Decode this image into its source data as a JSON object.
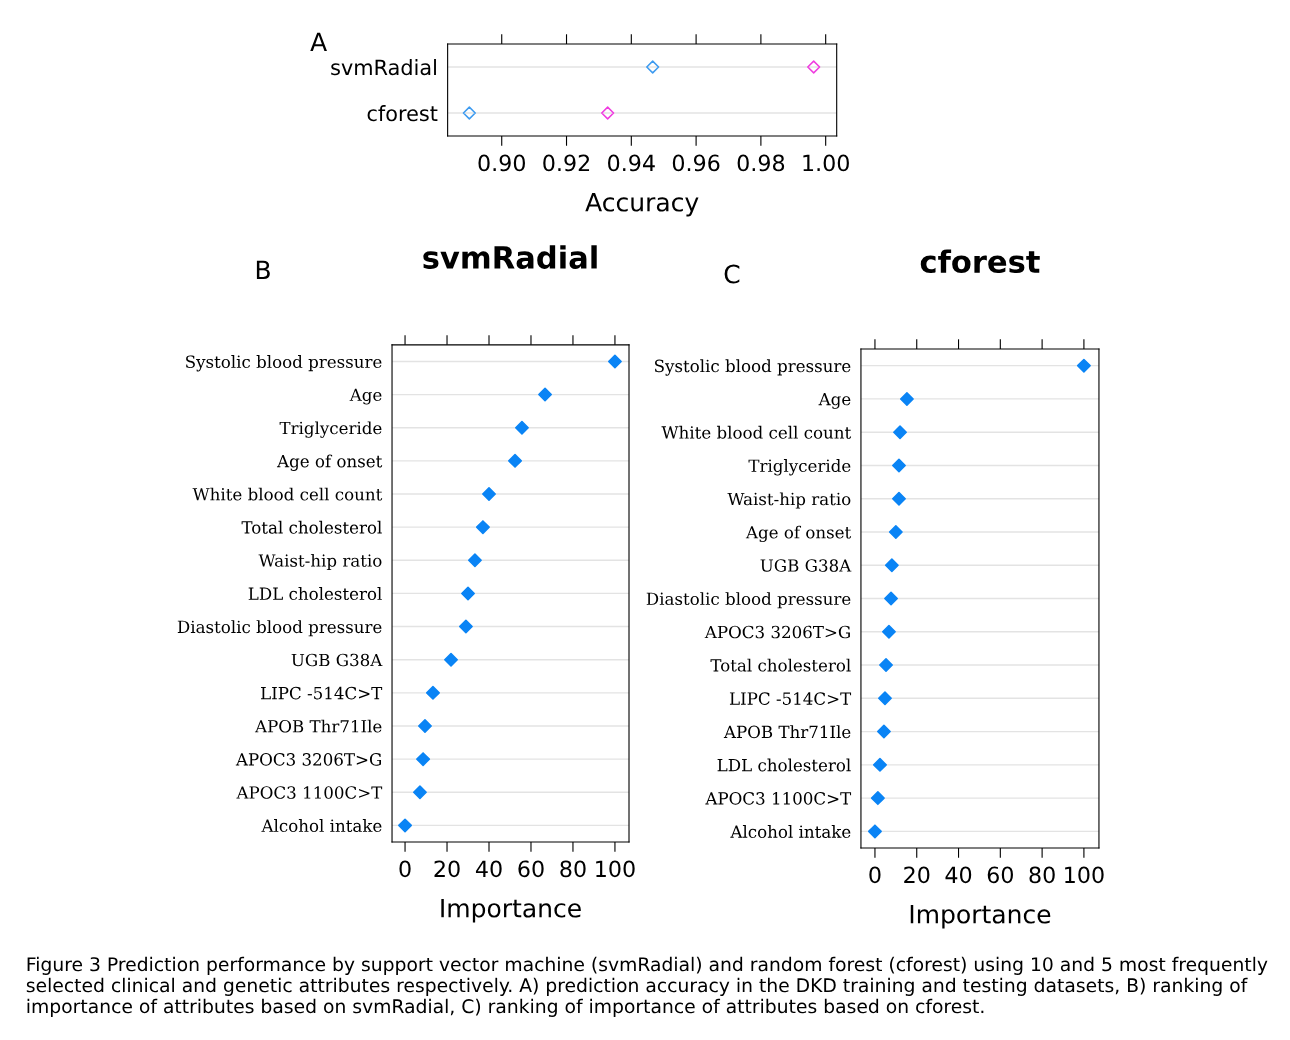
{
  "chart_data": [
    {
      "type": "scatter",
      "orientation": "horizontal",
      "xlabel": "Accuracy",
      "categories": [
        "svmRadial",
        "cforest"
      ],
      "series": [
        {
          "color": "#3d9bf0",
          "values": [
            0.9466,
            0.89
          ]
        },
        {
          "color": "#f03ce0",
          "values": [
            0.9963,
            0.9327
          ]
        }
      ],
      "xlim": [
        0.8833,
        1.0034
      ],
      "xticks": [
        {
          "value": 0.9,
          "label": "0.90"
        },
        {
          "value": 0.92,
          "label": "0.92"
        },
        {
          "value": 0.94,
          "label": "0.94"
        },
        {
          "value": 0.96,
          "label": "0.96"
        },
        {
          "value": 0.98,
          "label": "0.98"
        },
        {
          "value": 1.0,
          "label": "1.00"
        }
      ],
      "marker": "diamond",
      "grid": "y",
      "annotations": [
        "A",
        "Figure 3 Prediction performance by support vector machine (svmRadial) and random forest (cforest) using 10 and 5 most frequently selected clinical and genetic attributes respectively. A) prediction accuracy in the DKD training and testing datasets, B) ranking of importance of attributes based on svmRadial, C) ranking of importance of attributes based on cforest."
      ]
    },
    {
      "type": "scatter",
      "orientation": "horizontal",
      "title": "svmRadial",
      "xlabel": "Importance",
      "categories": [
        "Systolic blood pressure",
        "Age",
        "Triglyceride",
        "Age of onset",
        "White blood cell count",
        "Total cholesterol",
        "Waist-hip ratio",
        "LDL cholesterol",
        "Diastolic blood pressure",
        "UGB G38A",
        "LIPC -514C>T",
        "APOB Thr71Ile",
        "APOC3 3206T>G",
        "APOC3 1100C>T",
        "Alcohol intake"
      ],
      "series": [
        {
          "color": "#0a84f5",
          "values": [
            100,
            66.7,
            55.7,
            52.4,
            40,
            37.1,
            33.3,
            30,
            29,
            21.9,
            13.3,
            9.5,
            8.6,
            7.1,
            0
          ]
        }
      ],
      "xlim": [
        -6.2,
        106.7
      ],
      "xticks": [
        0,
        20,
        40,
        60,
        80,
        100
      ],
      "marker": "diamond",
      "grid": "y",
      "annotations": [
        "B"
      ]
    },
    {
      "type": "scatter",
      "orientation": "horizontal",
      "title": "cforest",
      "xlabel": "Importance",
      "categories": [
        "Systolic blood pressure",
        "Age",
        "White blood cell count",
        "Triglyceride",
        "Waist-hip ratio",
        "Age of onset",
        "UGB G38A",
        "Diastolic blood pressure",
        "APOC3 3206T>G",
        "Total cholesterol",
        "LIPC -514C>T",
        "APOB Thr71Ile",
        "LDL cholesterol",
        "APOC3 1100C>T",
        "Alcohol intake"
      ],
      "series": [
        {
          "color": "#0a84f5",
          "values": [
            100,
            15.3,
            12,
            11.5,
            11.5,
            10,
            8.1,
            7.7,
            6.7,
            5.3,
            4.8,
            4.3,
            2.4,
            1.4,
            0
          ]
        }
      ],
      "xlim": [
        -6.7,
        107.2
      ],
      "xticks": [
        0,
        20,
        40,
        60,
        80,
        100
      ],
      "marker": "diamond",
      "grid": "y",
      "annotations": [
        "C"
      ]
    }
  ]
}
